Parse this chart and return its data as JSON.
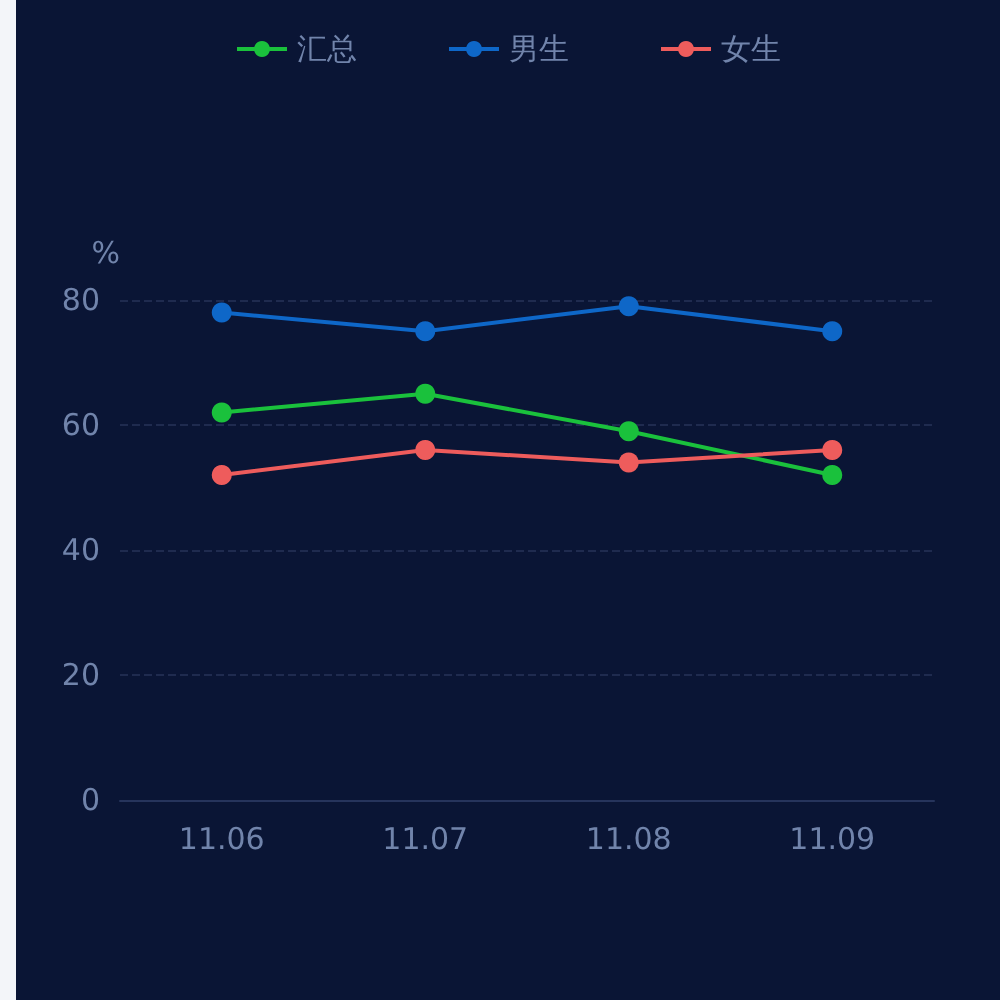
{
  "chart_data": {
    "type": "line",
    "ylabel": "%",
    "categories": [
      "11.06",
      "11.07",
      "11.08",
      "11.09"
    ],
    "series": [
      {
        "name": "汇总",
        "color": "#1ac13c",
        "values": [
          62,
          65,
          59,
          52
        ]
      },
      {
        "name": "男生",
        "color": "#0e67c8",
        "values": [
          78,
          75,
          79,
          75
        ]
      },
      {
        "name": "女生",
        "color": "#ee5c5c",
        "values": [
          52,
          56,
          54,
          56
        ]
      }
    ],
    "ylim": [
      0,
      80
    ],
    "yticks": [
      0,
      20,
      40,
      60,
      80
    ],
    "grid": "y",
    "legend": "top",
    "marker": "circle",
    "line_style": "solid"
  }
}
